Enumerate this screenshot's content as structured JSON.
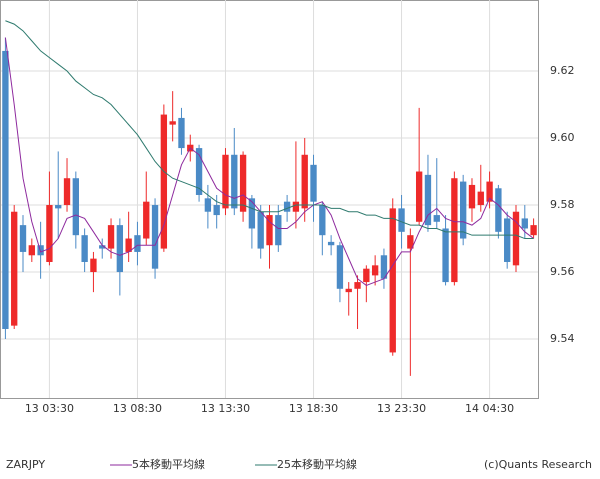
{
  "chart_data": {
    "type": "candlestick",
    "symbol": "ZARJPY",
    "copyright": "(c)Quants Research",
    "categories": [
      null,
      null,
      null,
      null,
      null,
      "13 03:30",
      null,
      null,
      null,
      null,
      null,
      null,
      null,
      null,
      null,
      "13 08:30",
      null,
      null,
      null,
      null,
      null,
      null,
      null,
      null,
      null,
      "13 13:30",
      null,
      null,
      null,
      null,
      null,
      null,
      null,
      null,
      null,
      "13 18:30",
      null,
      null,
      null,
      null,
      null,
      null,
      null,
      null,
      null,
      "13 23:30",
      null,
      null,
      null,
      null,
      null,
      null,
      null,
      null,
      null,
      "14 04:30",
      null,
      null,
      null,
      null,
      null
    ],
    "open": [
      9.626,
      9.544,
      9.574,
      9.565,
      9.568,
      9.563,
      9.58,
      9.58,
      9.588,
      9.571,
      9.56,
      9.568,
      9.567,
      9.574,
      9.566,
      9.571,
      9.57,
      9.58,
      9.567,
      9.604,
      9.606,
      9.596,
      9.597,
      9.582,
      9.58,
      9.579,
      9.595,
      9.578,
      9.582,
      9.578,
      9.568,
      9.577,
      9.581,
      9.578,
      9.579,
      9.592,
      9.58,
      9.569,
      9.568,
      9.554,
      9.555,
      9.557,
      9.559,
      9.565,
      9.536,
      9.579,
      9.567,
      9.575,
      9.589,
      9.577,
      9.573,
      9.557,
      9.587,
      9.579,
      9.58,
      9.581,
      9.585,
      9.576,
      9.562,
      9.576,
      9.571
    ],
    "high": [
      9.63,
      9.58,
      9.577,
      9.57,
      9.575,
      9.59,
      9.596,
      9.594,
      9.59,
      9.573,
      9.566,
      9.57,
      9.576,
      9.576,
      9.578,
      9.575,
      9.59,
      9.582,
      9.61,
      9.614,
      9.609,
      9.601,
      9.598,
      9.586,
      9.583,
      9.597,
      9.603,
      9.596,
      9.583,
      9.58,
      9.58,
      9.58,
      9.583,
      9.599,
      9.6,
      9.595,
      9.581,
      9.571,
      9.569,
      9.557,
      9.559,
      9.562,
      9.565,
      9.567,
      9.582,
      9.583,
      9.573,
      9.609,
      9.595,
      9.594,
      9.577,
      9.59,
      9.589,
      9.588,
      9.592,
      9.59,
      9.586,
      9.578,
      9.58,
      9.58,
      9.576
    ],
    "low": [
      9.54,
      9.543,
      9.56,
      9.563,
      9.558,
      9.562,
      9.57,
      9.578,
      9.567,
      9.56,
      9.554,
      9.564,
      9.564,
      9.553,
      9.563,
      9.562,
      9.568,
      9.558,
      9.566,
      9.599,
      9.595,
      9.593,
      9.581,
      9.573,
      9.573,
      9.577,
      9.577,
      9.575,
      9.567,
      9.564,
      9.561,
      9.566,
      9.575,
      9.573,
      9.575,
      9.575,
      9.565,
      9.565,
      9.551,
      9.547,
      9.543,
      9.551,
      9.556,
      9.555,
      9.535,
      9.567,
      9.529,
      9.574,
      9.572,
      9.573,
      9.556,
      9.556,
      9.568,
      9.575,
      9.578,
      9.579,
      9.57,
      9.561,
      9.56,
      9.57,
      9.57
    ],
    "close": [
      9.543,
      9.578,
      9.566,
      9.568,
      9.565,
      9.58,
      9.579,
      9.588,
      9.571,
      9.563,
      9.564,
      9.567,
      9.574,
      9.56,
      9.57,
      9.566,
      9.581,
      9.561,
      9.607,
      9.605,
      9.597,
      9.598,
      9.583,
      9.578,
      9.577,
      9.595,
      9.579,
      9.595,
      9.573,
      9.567,
      9.577,
      9.568,
      9.578,
      9.581,
      9.595,
      9.581,
      9.571,
      9.568,
      9.555,
      9.555,
      9.557,
      9.561,
      9.562,
      9.558,
      9.579,
      9.572,
      9.571,
      9.59,
      9.574,
      9.575,
      9.557,
      9.588,
      9.57,
      9.586,
      9.584,
      9.587,
      9.572,
      9.563,
      9.578,
      9.573,
      9.574
    ],
    "up_color": "#ee2a2a",
    "down_color": "#4a8ac6",
    "series": [
      {
        "name": "5本移動平均線",
        "color": "#8e2a9e",
        "values": [
          9.63,
          9.61,
          9.588,
          9.575,
          9.566,
          9.567,
          9.57,
          9.576,
          9.577,
          9.576,
          9.572,
          9.568,
          9.566,
          9.565,
          9.566,
          9.568,
          9.568,
          9.568,
          9.574,
          9.583,
          9.592,
          9.597,
          9.595,
          9.59,
          9.585,
          9.583,
          9.582,
          9.583,
          9.581,
          9.578,
          9.575,
          9.573,
          9.573,
          9.575,
          9.578,
          9.58,
          9.581,
          9.577,
          9.57,
          9.564,
          9.558,
          9.556,
          9.557,
          9.558,
          9.562,
          9.566,
          9.566,
          9.572,
          9.577,
          9.579,
          9.576,
          9.575,
          9.575,
          9.574,
          9.576,
          9.582,
          9.58,
          9.577,
          9.575,
          9.572,
          9.57
        ]
      },
      {
        "name": "25本移動平均線",
        "color": "#2e7a6e",
        "values": [
          9.635,
          9.634,
          9.632,
          9.629,
          9.626,
          9.624,
          9.622,
          9.62,
          9.617,
          9.615,
          9.613,
          9.612,
          9.61,
          9.607,
          9.604,
          9.601,
          9.597,
          9.593,
          9.59,
          9.588,
          9.587,
          9.586,
          9.585,
          9.583,
          9.581,
          9.58,
          9.58,
          9.58,
          9.579,
          9.578,
          9.578,
          9.578,
          9.579,
          9.58,
          9.58,
          9.58,
          9.58,
          9.579,
          9.579,
          9.578,
          9.578,
          9.577,
          9.577,
          9.576,
          9.576,
          9.575,
          9.574,
          9.574,
          9.573,
          9.573,
          9.572,
          9.572,
          9.572,
          9.571,
          9.571,
          9.571,
          9.571,
          9.571,
          9.571,
          9.57,
          9.57
        ]
      }
    ],
    "ylim": [
      9.5224,
      9.6412
    ],
    "yticks": [
      {
        "value": 9.54,
        "label": "9.54"
      },
      {
        "value": 9.56,
        "label": "9.56"
      },
      {
        "value": 9.58,
        "label": "9.58"
      },
      {
        "value": 9.6,
        "label": "9.60"
      },
      {
        "value": 9.62,
        "label": "9.62"
      }
    ],
    "grid": true
  }
}
